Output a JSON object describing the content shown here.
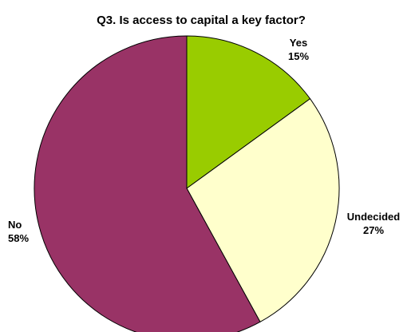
{
  "chart_data": {
    "type": "pie",
    "title": "Q3. Is access to capital a key factor?",
    "slices": [
      {
        "label": "Yes",
        "value": 15,
        "value_label": "15%",
        "color": "#99cc00"
      },
      {
        "label": "Undecided",
        "value": 27,
        "value_label": "27%",
        "color": "#ffffcc"
      },
      {
        "label": "No",
        "value": 58,
        "value_label": "58%",
        "color": "#993366"
      }
    ],
    "start": "12 o'clock",
    "direction": "clockwise",
    "legend": "none"
  }
}
